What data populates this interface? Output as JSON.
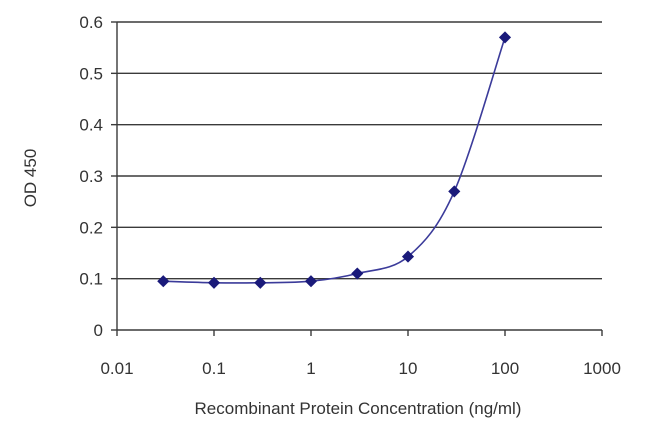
{
  "chart_data": {
    "type": "scatter",
    "xlabel": "Recombinant Protein Concentration (ng/ml)",
    "ylabel": "OD 450",
    "xscale": "log",
    "xlim": [
      0.01,
      1000
    ],
    "ylim": [
      0,
      0.6
    ],
    "x_ticks": [
      0.01,
      0.1,
      1,
      10,
      100,
      1000
    ],
    "x_tick_labels": [
      "0.01",
      "0.1",
      "1",
      "10",
      "100",
      "1000"
    ],
    "y_ticks": [
      0,
      0.1,
      0.2,
      0.3,
      0.4,
      0.5,
      0.6
    ],
    "y_tick_labels": [
      "0",
      "0.1",
      "0.2",
      "0.3",
      "0.4",
      "0.5",
      "0.6"
    ],
    "grid": "horizontal",
    "legend": "none",
    "series": [
      {
        "color": "#1a1a7a",
        "marker": "diamond",
        "fit_curve": true,
        "points": [
          {
            "x": 0.03,
            "y": 0.095
          },
          {
            "x": 0.1,
            "y": 0.092
          },
          {
            "x": 0.3,
            "y": 0.092
          },
          {
            "x": 1,
            "y": 0.095
          },
          {
            "x": 3,
            "y": 0.11
          },
          {
            "x": 10,
            "y": 0.143
          },
          {
            "x": 30,
            "y": 0.27
          },
          {
            "x": 100,
            "y": 0.57
          }
        ]
      }
    ]
  }
}
